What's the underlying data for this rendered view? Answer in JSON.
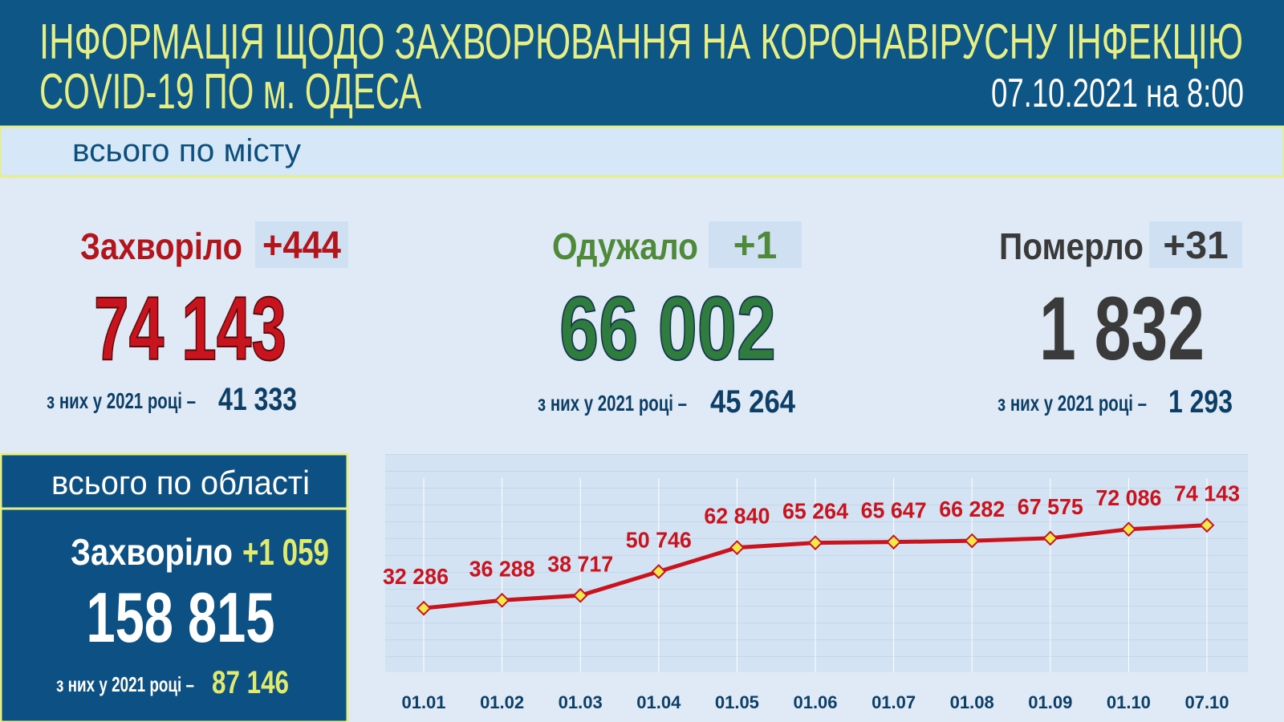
{
  "header": {
    "title_line1": "ІНФОРМАЦІЯ ЩОДО ЗАХВОРЮВАННЯ НА КОРОНАВІРУСНУ ІНФЕКЦІЮ",
    "title_line2": "COVID-19 ПО м. ОДЕСА",
    "date": "07.10.2021 на 8:00"
  },
  "city": {
    "label": "всього по місту",
    "stats": [
      {
        "label": "Захворіло",
        "delta": "+444",
        "total": "74 143",
        "year_note": "з них у 2021 році –",
        "year_value": "41 333"
      },
      {
        "label": "Одужало",
        "delta": "+1",
        "total": "66 002",
        "year_note": "з них у 2021 році –",
        "year_value": "45 264"
      },
      {
        "label": "Померло",
        "delta": "+31",
        "total": "1 832",
        "year_note": "з них у 2021 році –",
        "year_value": "1 293"
      }
    ]
  },
  "region": {
    "label": "всього по області",
    "stat_label": "Захворіло",
    "delta": "+1 059",
    "total": "158 815",
    "year_note": "з них у 2021 році –",
    "year_value": "87 146"
  },
  "chart_data": {
    "type": "line",
    "categories": [
      "01.01",
      "01.02",
      "01.03",
      "01.04",
      "01.05",
      "01.06",
      "01.07",
      "01.08",
      "01.09",
      "01.10",
      "07.10"
    ],
    "series": [
      {
        "name": "Захворіло",
        "color": "#c8141e",
        "values": [
          32286,
          36288,
          38717,
          50746,
          62840,
          65264,
          65647,
          66282,
          67575,
          72086,
          74143
        ],
        "value_labels": [
          "32 286",
          "36 288",
          "38 717",
          "50 746",
          "62 840",
          "65 264",
          "65 647",
          "66 282",
          "67 575",
          "72 086",
          "74 143"
        ]
      }
    ],
    "ylim": [
      0,
      110000
    ],
    "grid": true
  }
}
